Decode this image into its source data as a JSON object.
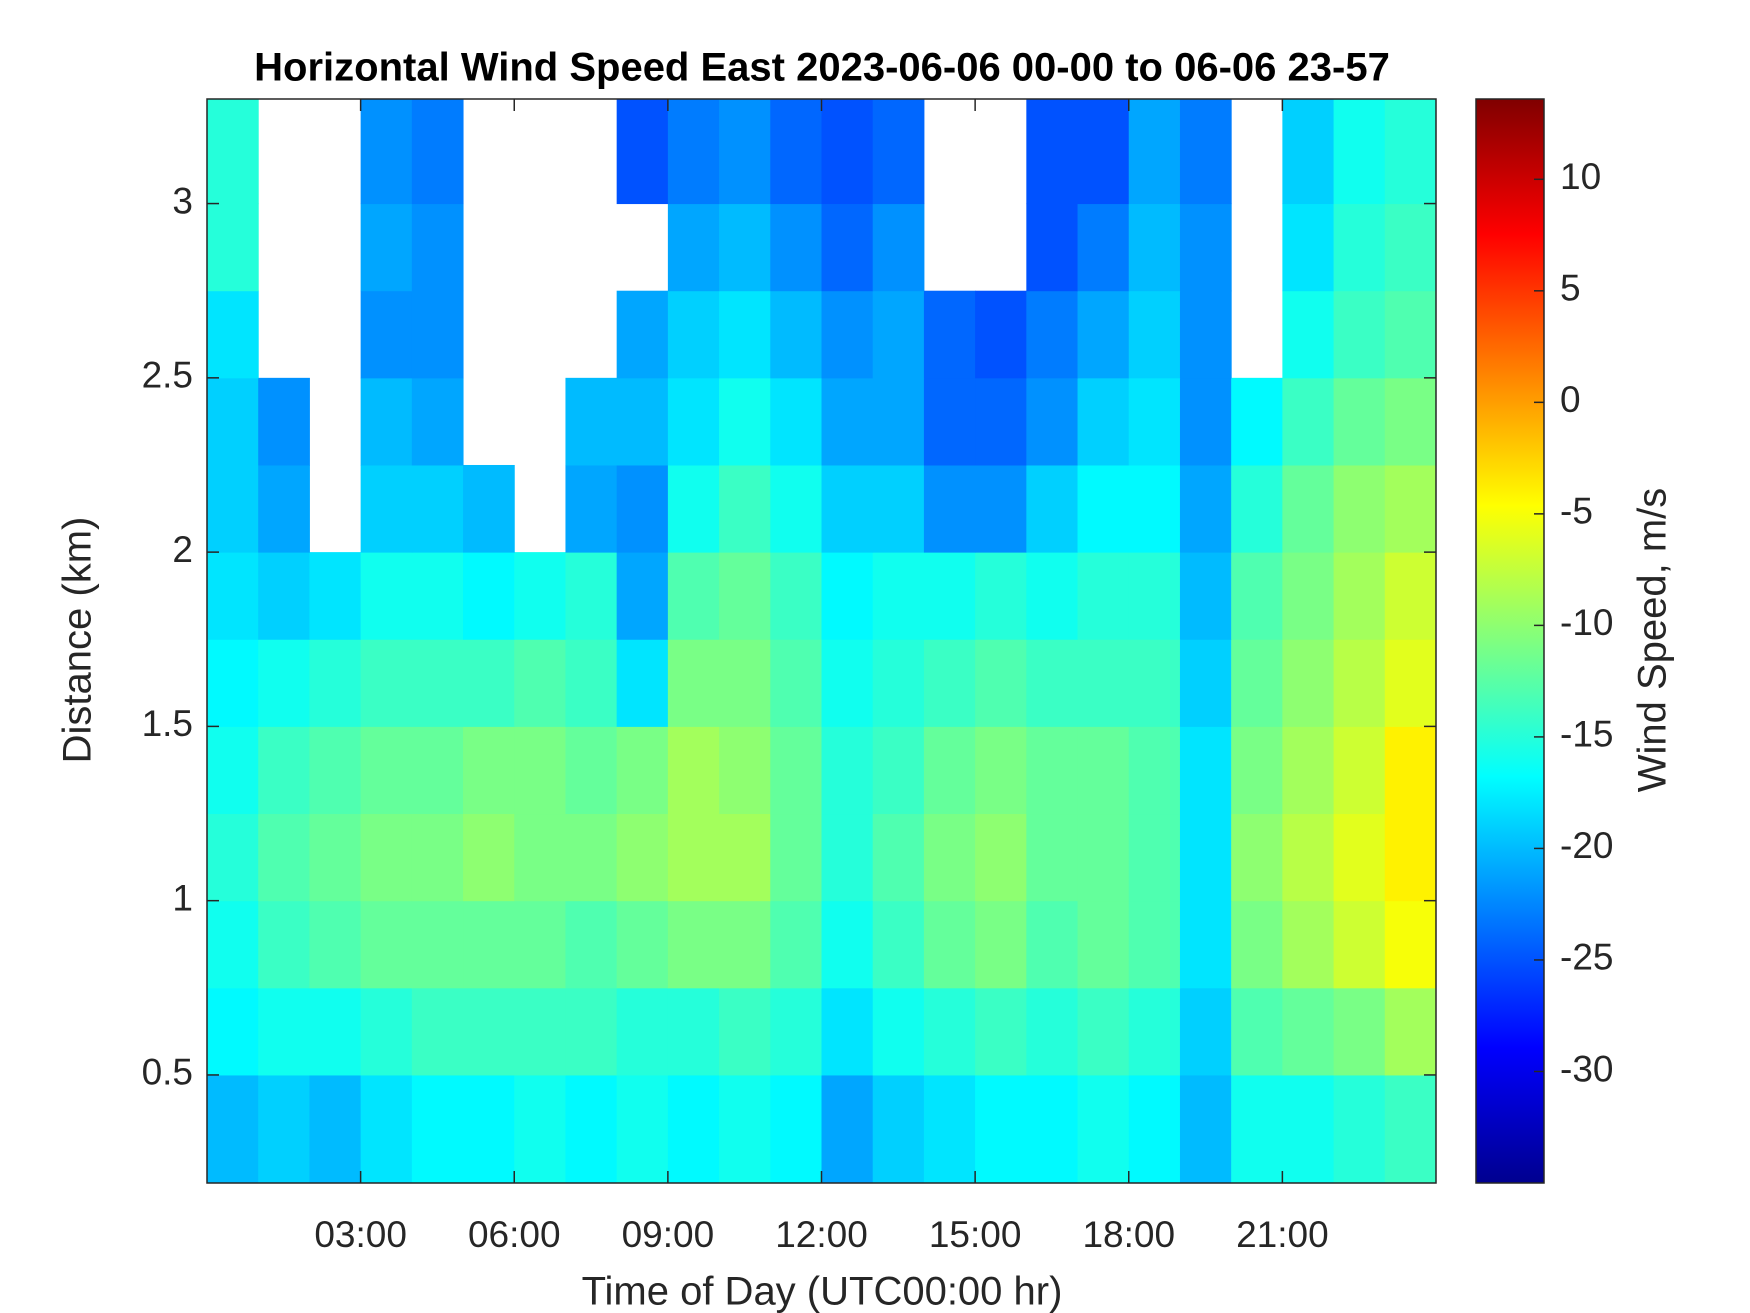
{
  "chart_data": {
    "type": "heatmap",
    "title": "Horizontal Wind Speed East 2023-06-06 00-00 to 06-06 23-57",
    "x_label": "Time of Day (UTC00:00 hr)",
    "y_label": "Distance (km)",
    "colorbar_label": "Wind Speed, m/s",
    "colormap": "jet",
    "xlim": [
      0,
      24
    ],
    "ylim": [
      0.19,
      3.3
    ],
    "clim": [
      -35,
      13.6
    ],
    "xticks": [
      {
        "value": 3,
        "label": "03:00"
      },
      {
        "value": 6,
        "label": "06:00"
      },
      {
        "value": 9,
        "label": "09:00"
      },
      {
        "value": 12,
        "label": "12:00"
      },
      {
        "value": 15,
        "label": "15:00"
      },
      {
        "value": 18,
        "label": "18:00"
      },
      {
        "value": 21,
        "label": "21:00"
      }
    ],
    "yticks": [
      0.5,
      1,
      1.5,
      2,
      2.5,
      3
    ],
    "cticks": [
      -30,
      -25,
      -20,
      -15,
      -10,
      -5,
      0,
      5,
      10
    ],
    "x_bins": [
      0,
      1,
      2,
      3,
      4,
      5,
      6,
      7,
      8,
      9,
      10,
      11,
      12,
      13,
      14,
      15,
      16,
      17,
      18,
      19,
      20,
      21,
      22,
      23,
      24
    ],
    "y_bins": [
      0.19,
      0.5,
      0.75,
      1,
      1.25,
      1.5,
      1.75,
      2,
      2.25,
      2.5,
      2.75,
      3,
      3.3
    ],
    "values": [
      [
        -20,
        -19,
        -20,
        -18,
        -17,
        -17,
        -16,
        -17,
        -16,
        -17,
        -16,
        -17,
        -21,
        -19,
        -18,
        -17,
        -17,
        -16,
        -17,
        -20,
        -16,
        -16,
        -15,
        -14
      ],
      [
        -17,
        -16,
        -16,
        -15,
        -14,
        -14,
        -14,
        -14,
        -15,
        -15,
        -14,
        -15,
        -18,
        -16,
        -15,
        -14,
        -15,
        -14,
        -15,
        -19,
        -13,
        -12,
        -11,
        -9
      ],
      [
        -16,
        -14,
        -13,
        -12,
        -12,
        -12,
        -12,
        -13,
        -12,
        -11,
        -11,
        -13,
        -16,
        -14,
        -12,
        -11,
        -13,
        -12,
        -13,
        -18,
        -11,
        -9,
        -7,
        -5
      ],
      [
        -15,
        -13,
        -12,
        -11,
        -11,
        -10,
        -11,
        -11,
        -10,
        -9,
        -9,
        -12,
        -15,
        -13,
        -11,
        -10,
        -12,
        -12,
        -13,
        -18,
        -10,
        -8,
        -6,
        -4
      ],
      [
        -16,
        -14,
        -13,
        -12,
        -12,
        -11,
        -11,
        -12,
        -11,
        -9,
        -10,
        -12,
        -15,
        -14,
        -12,
        -11,
        -12,
        -12,
        -13,
        -18,
        -11,
        -9,
        -7,
        -4
      ],
      [
        -17,
        -16,
        -15,
        -14,
        -14,
        -14,
        -13,
        -14,
        -18,
        -11,
        -11,
        -13,
        -16,
        -15,
        -14,
        -13,
        -14,
        -14,
        -14,
        -19,
        -12,
        -10,
        -8,
        -6
      ],
      [
        -18,
        -19,
        -18,
        -16,
        -16,
        -17,
        -16,
        -15,
        -21,
        -13,
        -12,
        -14,
        -17,
        -16,
        -16,
        -15,
        -16,
        -15,
        -15,
        -20,
        -13,
        -11,
        -9,
        -7
      ],
      [
        -19,
        -21,
        null,
        -19,
        -19,
        -20,
        null,
        -21,
        -22,
        -16,
        -14,
        -16,
        -19,
        -19,
        -22,
        -22,
        -19,
        -17,
        -17,
        -21,
        -15,
        -12,
        -10,
        -9
      ],
      [
        -19,
        -22,
        null,
        -20,
        -21,
        null,
        null,
        -20,
        -20,
        -18,
        -16,
        -18,
        -21,
        -21,
        -24,
        -24,
        -22,
        -19,
        -18,
        -22,
        -17,
        -14,
        -12,
        -11
      ],
      [
        -18,
        null,
        null,
        -22,
        -22,
        null,
        null,
        null,
        -21,
        -19,
        -18,
        -20,
        -22,
        -21,
        -24,
        -25,
        -23,
        -21,
        -19,
        -22,
        null,
        -16,
        -14,
        -13
      ],
      [
        -15,
        null,
        null,
        -21,
        -22,
        null,
        null,
        null,
        null,
        -21,
        -20,
        -22,
        -24,
        -22,
        null,
        null,
        -25,
        -23,
        -20,
        -22,
        null,
        -18,
        -15,
        -14
      ],
      [
        -15,
        null,
        null,
        -22,
        -23,
        null,
        null,
        null,
        -25,
        -23,
        -22,
        -24,
        -25,
        -24,
        null,
        null,
        -25,
        -25,
        -21,
        -23,
        null,
        -19,
        -16,
        -15
      ]
    ]
  }
}
